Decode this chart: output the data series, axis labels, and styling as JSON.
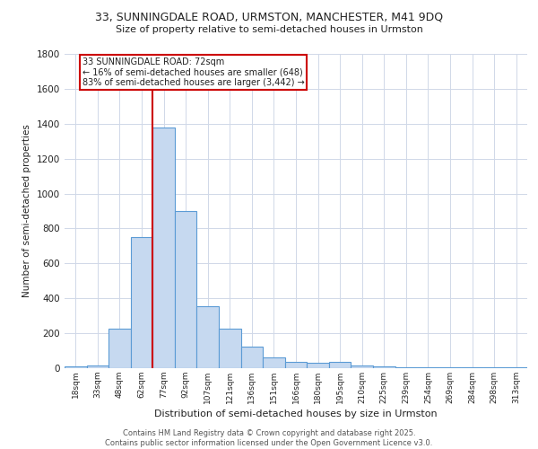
{
  "title_line1": "33, SUNNINGDALE ROAD, URMSTON, MANCHESTER, M41 9DQ",
  "title_line2": "Size of property relative to semi-detached houses in Urmston",
  "xlabel": "Distribution of semi-detached houses by size in Urmston",
  "ylabel": "Number of semi-detached properties",
  "bin_labels": [
    "18sqm",
    "33sqm",
    "48sqm",
    "62sqm",
    "77sqm",
    "92sqm",
    "107sqm",
    "121sqm",
    "136sqm",
    "151sqm",
    "166sqm",
    "180sqm",
    "195sqm",
    "210sqm",
    "225sqm",
    "239sqm",
    "254sqm",
    "269sqm",
    "284sqm",
    "298sqm",
    "313sqm"
  ],
  "bar_heights": [
    10,
    18,
    225,
    750,
    1380,
    900,
    355,
    225,
    125,
    60,
    35,
    30,
    35,
    18,
    10,
    5,
    5,
    5,
    5,
    5,
    5
  ],
  "bar_color": "#c6d9f0",
  "bar_edge_color": "#5b9bd5",
  "annotation_text_line1": "33 SUNNINGDALE ROAD: 72sqm",
  "annotation_text_line2": "← 16% of semi-detached houses are smaller (648)",
  "annotation_text_line3": "83% of semi-detached houses are larger (3,442) →",
  "annotation_box_color": "#ffffff",
  "annotation_box_edge_color": "#cc0000",
  "vline_color": "#cc0000",
  "vline_x": 3.5,
  "ylim": [
    0,
    1800
  ],
  "yticks": [
    0,
    200,
    400,
    600,
    800,
    1000,
    1200,
    1400,
    1600,
    1800
  ],
  "grid_color": "#d0d8e8",
  "bg_color": "#ffffff",
  "footer_line1": "Contains HM Land Registry data © Crown copyright and database right 2025.",
  "footer_line2": "Contains public sector information licensed under the Open Government Licence v3.0.",
  "font_color": "#222222"
}
